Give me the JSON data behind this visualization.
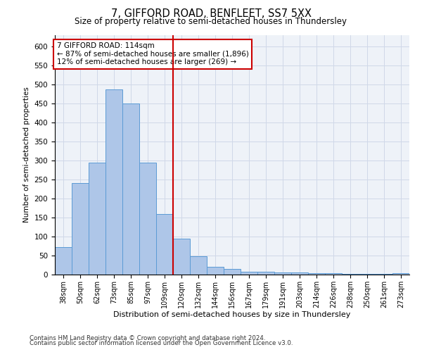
{
  "title": "7, GIFFORD ROAD, BENFLEET, SS7 5XX",
  "subtitle": "Size of property relative to semi-detached houses in Thundersley",
  "xlabel": "Distribution of semi-detached houses by size in Thundersley",
  "ylabel": "Number of semi-detached properties",
  "footnote1": "Contains HM Land Registry data © Crown copyright and database right 2024.",
  "footnote2": "Contains public sector information licensed under the Open Government Licence v3.0.",
  "annotation_title": "7 GIFFORD ROAD: 114sqm",
  "annotation_line1": "← 87% of semi-detached houses are smaller (1,896)",
  "annotation_line2": "12% of semi-detached houses are larger (269) →",
  "categories": [
    "38sqm",
    "50sqm",
    "62sqm",
    "73sqm",
    "85sqm",
    "97sqm",
    "109sqm",
    "120sqm",
    "132sqm",
    "144sqm",
    "156sqm",
    "167sqm",
    "179sqm",
    "191sqm",
    "203sqm",
    "214sqm",
    "226sqm",
    "238sqm",
    "250sqm",
    "261sqm",
    "273sqm"
  ],
  "values": [
    72,
    240,
    295,
    487,
    450,
    295,
    160,
    95,
    48,
    20,
    15,
    8,
    8,
    5,
    5,
    3,
    3,
    2,
    1,
    1,
    4
  ],
  "bar_color": "#aec6e8",
  "bar_edge_color": "#5b9bd5",
  "vline_color": "#cc0000",
  "grid_color": "#d0d8e8",
  "bg_color": "#eef2f8",
  "annotation_box_color": "#ffffff",
  "annotation_box_edge": "#cc0000",
  "ylim": [
    0,
    630
  ],
  "yticks": [
    0,
    50,
    100,
    150,
    200,
    250,
    300,
    350,
    400,
    450,
    500,
    550,
    600
  ],
  "vline_pos": 6.5
}
